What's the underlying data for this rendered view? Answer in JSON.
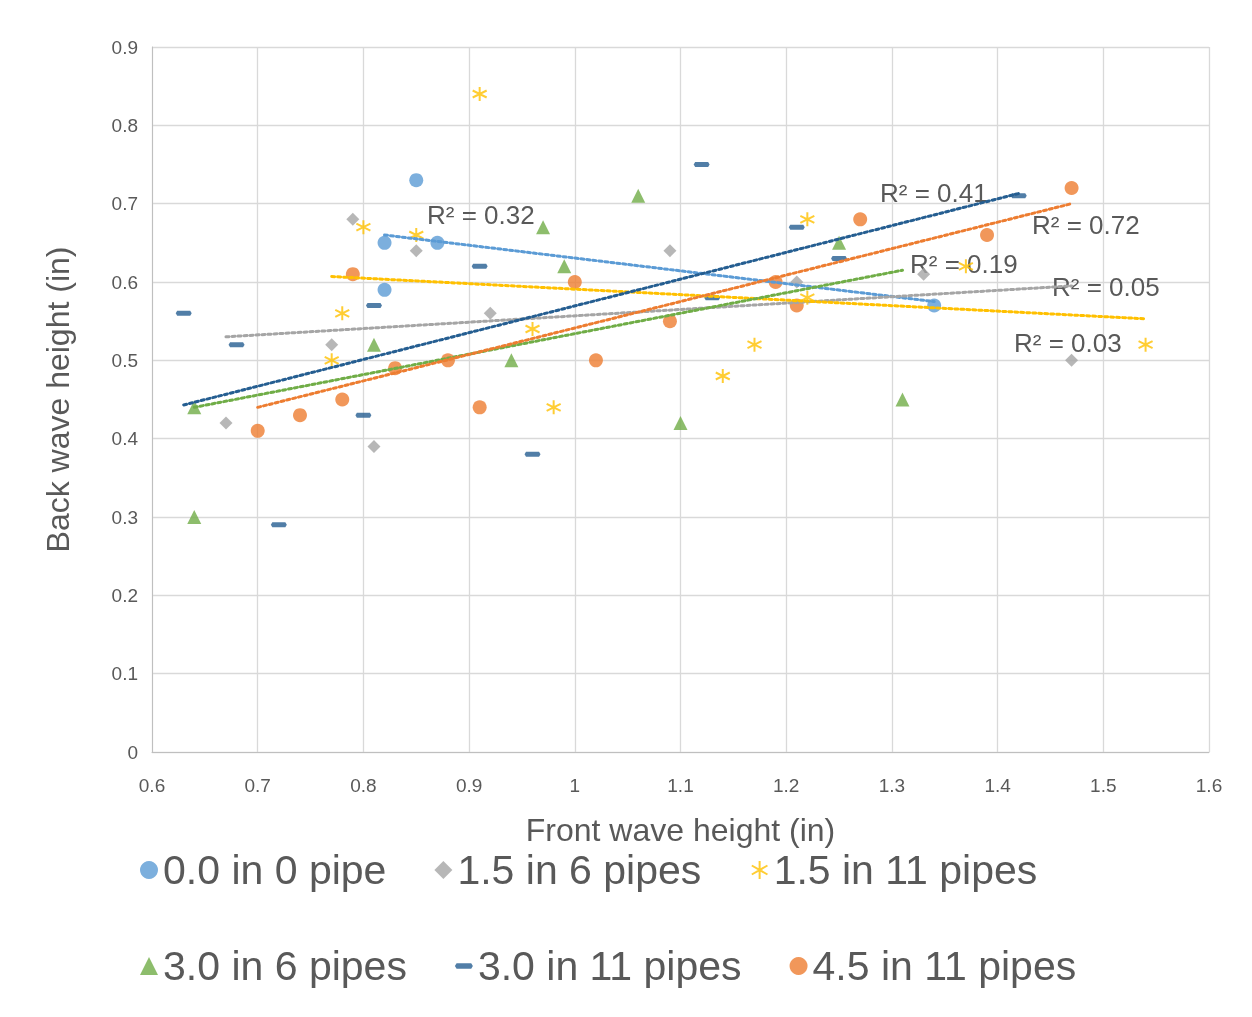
{
  "chart_data": {
    "type": "scatter",
    "xlabel": "Front wave height (in)",
    "ylabel": "Back wave height (in)",
    "xlim": [
      0.6,
      1.6
    ],
    "xticks": [
      0.6,
      0.7,
      0.8,
      0.9,
      1,
      1.1,
      1.2,
      1.3,
      1.4,
      1.5,
      1.6
    ],
    "ylim": [
      0,
      0.9
    ],
    "yticks": [
      0,
      0.1,
      0.2,
      0.3,
      0.4,
      0.5,
      0.6,
      0.7,
      0.8,
      0.9
    ],
    "grid": true,
    "legend": "bottom",
    "series": [
      {
        "name": "0.0 in 0 pipe",
        "color": "#5b9bd5",
        "marker": "circle",
        "x": [
          0.85,
          0.82,
          0.87,
          0.82,
          1.34
        ],
        "values": [
          0.73,
          0.65,
          0.65,
          0.59,
          0.57
        ]
      },
      {
        "name": "1.5 in 6 pipes",
        "color": "#a5a5a5",
        "marker": "diamond",
        "x": [
          0.79,
          0.85,
          0.77,
          0.67,
          0.81,
          0.92,
          1.09,
          1.21,
          1.33,
          1.47
        ],
        "values": [
          0.68,
          0.64,
          0.52,
          0.42,
          0.39,
          0.56,
          0.64,
          0.6,
          0.61,
          0.5
        ]
      },
      {
        "name": "1.5 in 11 pipes",
        "color": "#ffc000",
        "marker": "cross",
        "x": [
          0.91,
          0.8,
          0.85,
          0.78,
          0.77,
          0.96,
          0.98,
          1.14,
          1.17,
          1.22,
          1.22,
          1.37,
          1.54
        ],
        "values": [
          0.84,
          0.67,
          0.66,
          0.56,
          0.5,
          0.54,
          0.44,
          0.48,
          0.52,
          0.68,
          0.58,
          0.62,
          0.52
        ]
      },
      {
        "name": "3.0 in 6 pipes",
        "color": "#70ad47",
        "marker": "triangle",
        "x": [
          0.64,
          0.64,
          0.81,
          0.94,
          0.97,
          0.99,
          1.06,
          1.1,
          1.25,
          1.31
        ],
        "values": [
          0.44,
          0.3,
          0.52,
          0.5,
          0.67,
          0.62,
          0.71,
          0.42,
          0.65,
          0.45
        ]
      },
      {
        "name": "3.0 in 11 pipes",
        "color": "#255e91",
        "marker": "square",
        "x": [
          0.63,
          0.68,
          0.72,
          0.81,
          0.8,
          0.91,
          0.96,
          1.12,
          1.13,
          1.21,
          1.25,
          1.42
        ],
        "values": [
          0.56,
          0.52,
          0.29,
          0.57,
          0.43,
          0.62,
          0.38,
          0.75,
          0.58,
          0.67,
          0.63,
          0.71
        ]
      },
      {
        "name": "4.5 in 11 pipes",
        "color": "#ed7d31",
        "marker": "circle",
        "x": [
          0.7,
          0.74,
          0.78,
          0.79,
          0.83,
          0.88,
          0.91,
          1,
          1.02,
          1.09,
          1.19,
          1.21,
          1.27,
          1.39,
          1.47
        ],
        "values": [
          0.41,
          0.43,
          0.45,
          0.61,
          0.49,
          0.5,
          0.44,
          0.6,
          0.5,
          0.55,
          0.6,
          0.57,
          0.68,
          0.66,
          0.72
        ]
      },
      {
        "type": "line",
        "color": "#5b9bd5",
        "marker": "none",
        "line_style": "dotted",
        "x": [
          0.82,
          1.34
        ],
        "values": [
          0.66,
          0.575
        ]
      },
      {
        "type": "line",
        "color": "#a5a5a5",
        "marker": "none",
        "line_style": "dotted",
        "x": [
          0.67,
          1.47
        ],
        "values": [
          0.53,
          0.595
        ]
      },
      {
        "type": "line",
        "color": "#ffc000",
        "marker": "none",
        "line_style": "dotted",
        "x": [
          0.77,
          1.54
        ],
        "values": [
          0.607,
          0.553
        ]
      },
      {
        "type": "line",
        "color": "#70ad47",
        "marker": "none",
        "line_style": "dotted",
        "x": [
          0.64,
          1.31
        ],
        "values": [
          0.44,
          0.615
        ]
      },
      {
        "type": "line",
        "color": "#255e91",
        "marker": "none",
        "line_style": "dotted",
        "x": [
          0.63,
          1.42
        ],
        "values": [
          0.443,
          0.713
        ]
      },
      {
        "type": "line",
        "color": "#ed7d31",
        "marker": "none",
        "line_style": "dotted",
        "x": [
          0.7,
          1.47
        ],
        "values": [
          0.44,
          0.7
        ]
      }
    ],
    "annotations": [
      "R² = 0.32",
      "R² = 0.41",
      "R² = 0.72",
      "R² = 0.19",
      "R² = 0.05",
      "R² = 0.03"
    ]
  }
}
